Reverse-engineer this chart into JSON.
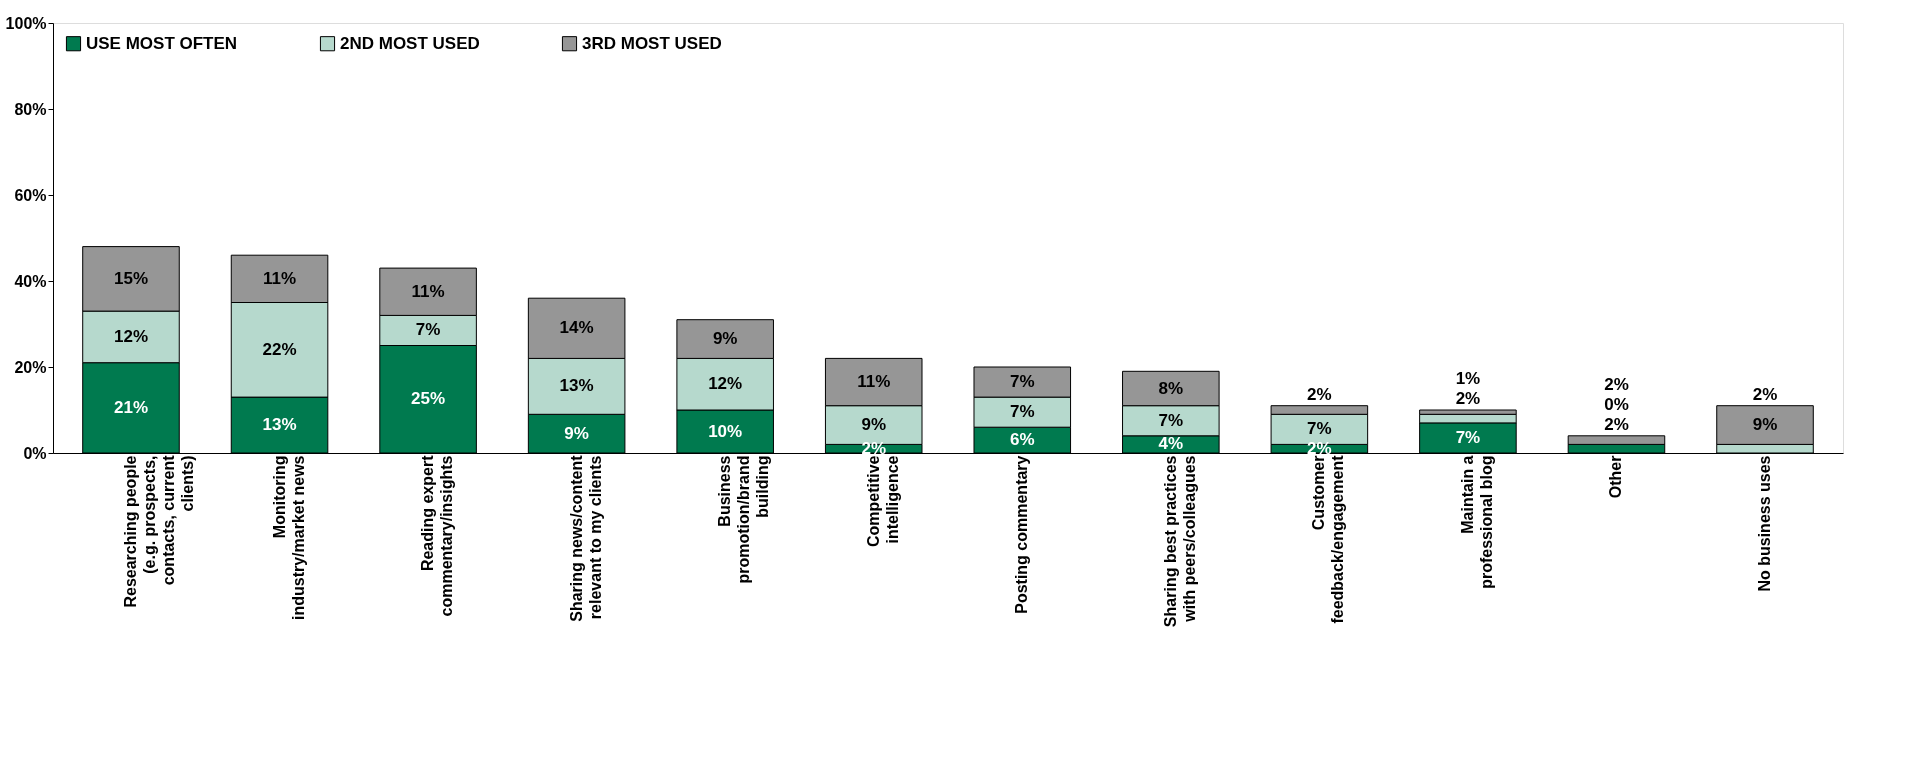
{
  "chart_data": {
    "type": "bar",
    "stacked": true,
    "legend": "top left",
    "categories": [
      "Researching people (e.g. prospects, contacts, current clients)",
      "Monitoring industry/market news",
      "Reading expert commentary/insights",
      "Sharing news/content relevant to my clients",
      "Business promotion/brand building",
      "Competitive intelligence",
      "Posting commentary",
      "Sharing best practices with peers/colleagues",
      "Customer feedback/engagement",
      "Maintain a professional blog",
      "Other",
      "No business uses"
    ],
    "series": [
      {
        "name": "USE MOST OFTEN",
        "color": "#007a4f",
        "values": [
          21,
          13,
          25,
          9,
          10,
          2,
          6,
          4,
          2,
          7,
          2,
          0
        ],
        "value_labels": [
          "21%",
          "13%",
          "25%",
          "9%",
          "10%",
          "2%",
          "6%",
          "4%",
          "2%",
          "7%",
          "2%",
          null
        ]
      },
      {
        "name": "2ND MOST USED",
        "color": "#b6d9cd",
        "values": [
          12,
          22,
          7,
          13,
          12,
          9,
          7,
          7,
          7,
          2,
          0,
          2
        ],
        "value_labels": [
          "12%",
          "22%",
          "7%",
          "13%",
          "12%",
          "9%",
          "7%",
          "7%",
          "7%",
          "2%",
          "0%",
          "2%"
        ]
      },
      {
        "name": "3RD MOST USED",
        "color": "#969696",
        "values": [
          15,
          11,
          11,
          14,
          9,
          11,
          7,
          8,
          2,
          1,
          2,
          9
        ],
        "value_labels": [
          "15%",
          "11%",
          "11%",
          "14%",
          "9%",
          "11%",
          "7%",
          "8%",
          "2%",
          "1%",
          "2%",
          "9%"
        ]
      }
    ],
    "ylim": [
      0,
      100
    ],
    "yticks": [
      {
        "value": 0,
        "label": "0%"
      },
      {
        "value": 20,
        "label": "20%"
      },
      {
        "value": 40,
        "label": "40%"
      },
      {
        "value": 60,
        "label": "60%"
      },
      {
        "value": 80,
        "label": "80%"
      },
      {
        "value": 100,
        "label": "100%"
      }
    ],
    "grid": false
  }
}
